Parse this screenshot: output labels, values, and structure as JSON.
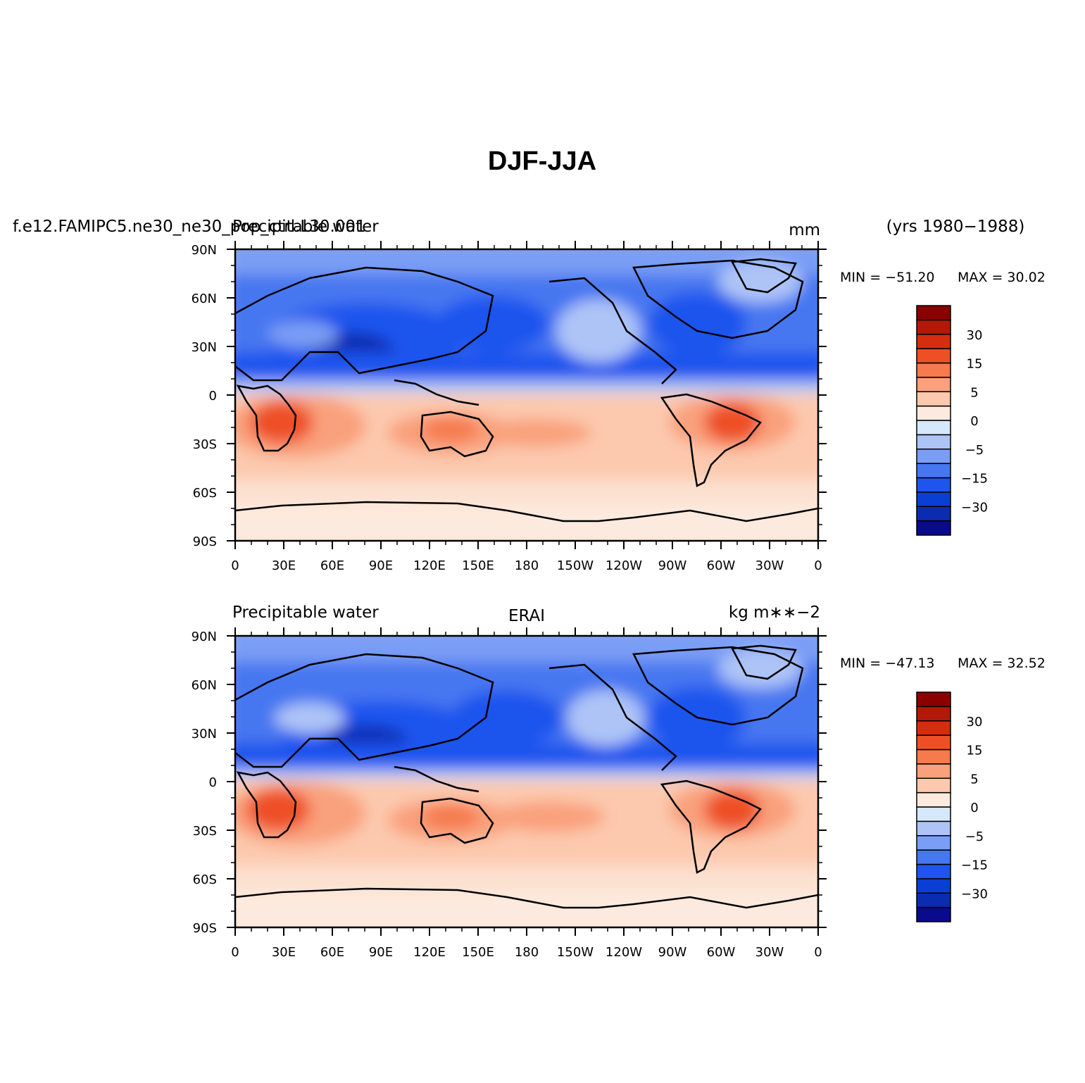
{
  "title": "DJF-JJA",
  "chart_data": [
    {
      "type": "heatmap",
      "case_label": "f.e12.FAMIPC5.ne30_ne30_pop_ctrl.L30.001",
      "left_label": "Precipitable water",
      "center_label": "",
      "units": "mm",
      "years": "(yrs 1980−1988)",
      "min_label": "MIN = −51.20",
      "max_label": "MAX =  30.02",
      "min": -51.2,
      "max": 30.02,
      "xlim": [
        0,
        360
      ],
      "ylim": [
        -90,
        90
      ],
      "x_tick_labels": [
        "0",
        "30E",
        "60E",
        "90E",
        "120E",
        "150E",
        "180",
        "150W",
        "120W",
        "90W",
        "60W",
        "30W",
        "0"
      ],
      "y_tick_labels": [
        "90N",
        "60N",
        "30N",
        "0",
        "30S",
        "60S",
        "90S"
      ],
      "colorbar_labels": [
        "30",
        "15",
        "5",
        "0",
        "−5",
        "−15",
        "−30"
      ]
    },
    {
      "type": "heatmap",
      "case_label": "",
      "left_label": "Precipitable water",
      "center_label": "ERAI",
      "units": "kg m∗∗−2",
      "years": "",
      "min_label": "MIN = −47.13",
      "max_label": "MAX =  32.52",
      "min": -47.13,
      "max": 32.52,
      "xlim": [
        0,
        360
      ],
      "ylim": [
        -90,
        90
      ],
      "x_tick_labels": [
        "0",
        "30E",
        "60E",
        "90E",
        "120E",
        "150E",
        "180",
        "150W",
        "120W",
        "90W",
        "60W",
        "30W",
        "0"
      ],
      "y_tick_labels": [
        "90N",
        "60N",
        "30N",
        "0",
        "30S",
        "60S",
        "90S"
      ],
      "colorbar_labels": [
        "30",
        "15",
        "5",
        "0",
        "−5",
        "−15",
        "−30"
      ]
    }
  ],
  "colorbar_levels": [
    -40,
    -30,
    -20,
    -15,
    -10,
    -5,
    -2,
    0,
    2,
    5,
    10,
    15,
    20,
    30,
    40
  ],
  "colorbar_colors": [
    "#0a0a8c",
    "#0b2bb0",
    "#0a3fd6",
    "#1f55ee",
    "#4677f0",
    "#7a9ef5",
    "#aec4f7",
    "#d6e8fb",
    "#fdeade",
    "#fcc9ae",
    "#f9a07c",
    "#f67a4e",
    "#ee5026",
    "#d62d0e",
    "#b2190a",
    "#8b0000"
  ]
}
